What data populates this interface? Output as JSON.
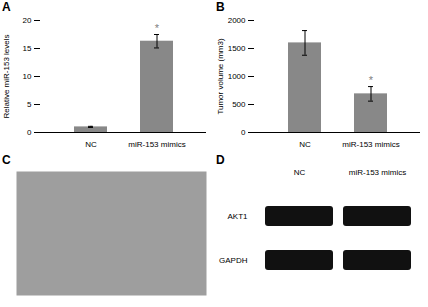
{
  "chart_data": [
    {
      "type": "bar",
      "title": "A",
      "categories": [
        "NC",
        "miR-153 mimics"
      ],
      "values": [
        1.0,
        16.3
      ],
      "errors": [
        0.1,
        1.2
      ],
      "ylabel": "Relative miR-153 levels",
      "ylim": [
        0,
        20
      ],
      "yticks": [
        0,
        5,
        10,
        15,
        20
      ],
      "color": "#888888",
      "annotations": [
        {
          "text": "*",
          "category": "miR-153 mimics"
        }
      ]
    },
    {
      "type": "bar",
      "title": "B",
      "categories": [
        "NC",
        "miR-153 mimics"
      ],
      "values": [
        1600,
        690
      ],
      "errors": [
        220,
        130
      ],
      "ylabel": "Tumor volume (mm3)",
      "ylim": [
        0,
        2000
      ],
      "yticks": [
        0,
        500,
        1000,
        1500,
        2000
      ],
      "color": "#888888",
      "annotations": [
        {
          "text": "*",
          "category": "miR-153 mimics"
        }
      ]
    },
    {
      "type": "image",
      "title": "C",
      "color": "#9e9e9e"
    },
    {
      "type": "blot",
      "title": "D",
      "categories": [
        "NC",
        "miR-153 mimics"
      ],
      "series": [
        {
          "name": "AKT1"
        },
        {
          "name": "GAPDH"
        }
      ],
      "color": "#111111"
    }
  ]
}
